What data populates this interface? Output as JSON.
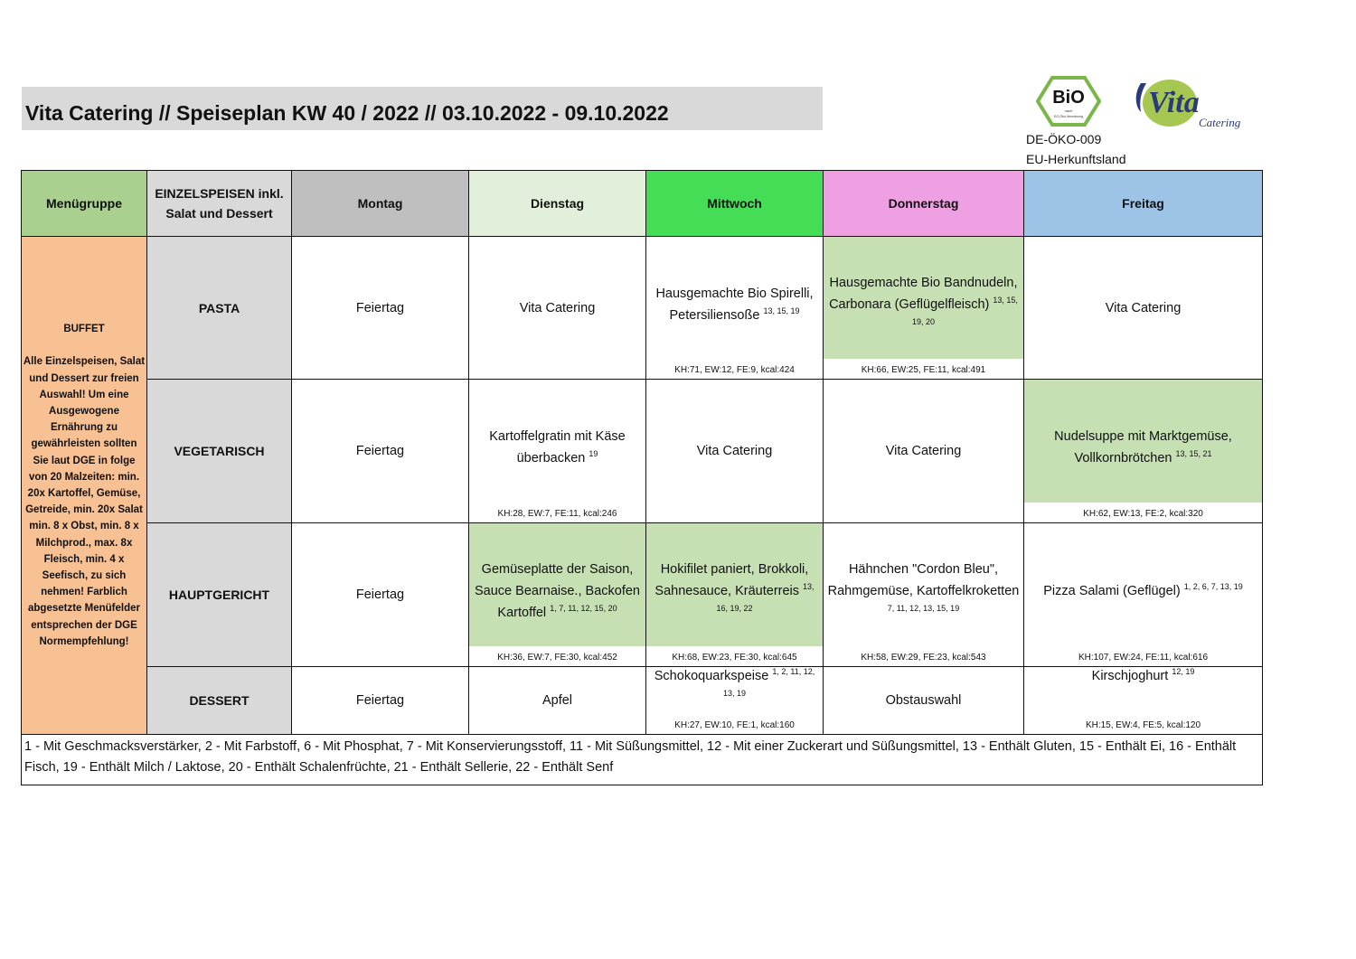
{
  "title": "Vita Catering // Speiseplan KW 40 / 2022 // 03.10.2022 - 09.10.2022",
  "logos": {
    "bio": "BIO nach EG-Öko-Verordnung",
    "vita": "Vita Catering"
  },
  "certification": {
    "code": "DE-ÖKO-009",
    "origin": "EU-Herkunftsland"
  },
  "colors": {
    "menugruppe": "#a9d08e",
    "einzel": "#d9d9d9",
    "montag": "#bfbfbf",
    "dienstag": "#e2efda",
    "mittwoch": "#44dd55",
    "donnerstag": "#eea0e2",
    "freitag": "#9dc3e6",
    "buffet": "#f8c193",
    "dge_green": "#c6e0b4"
  },
  "header": [
    "Menügruppe",
    "EINZELSPEISEN inkl. Salat und Dessert",
    "Montag",
    "Dienstag",
    "Mittwoch",
    "Donnerstag",
    "Freitag"
  ],
  "buffet": {
    "title": "BUFFET",
    "text": "Alle Einzelspeisen, Salat und Dessert zur freien Auswahl! Um eine Ausgewogene Ernährung zu gewährleisten sollten Sie laut DGE in folge von 20 Malzeiten: min. 20x Kartoffel, Gemüse, Getreide, min. 20x Salat min. 8 x Obst, min. 8 x Milchprod., max. 8x Fleisch, min. 4 x Seefisch, zu sich nehmen! Farblich abgesetzte Menüfelder entsprechen der DGE Normempfehlung!"
  },
  "rows": [
    {
      "category": "PASTA",
      "days": [
        {
          "text": "Feiertag"
        },
        {
          "text": "Vita Catering"
        },
        {
          "text": "Hausgemachte Bio Spirelli, Petersiliensoße",
          "allergens": "13, 15, 19",
          "nutrition": "KH:71, EW:12, FE:9, kcal:424"
        },
        {
          "text": "Hausgemachte Bio Bandnudeln, Carbonara (Geflügelfleisch)",
          "allergens": "13, 15, 19, 20",
          "nutrition": "KH:66, EW:25, FE:11, kcal:491",
          "dge": true
        },
        {
          "text": "Vita Catering"
        }
      ]
    },
    {
      "category": "VEGETARISCH",
      "days": [
        {
          "text": "Feiertag"
        },
        {
          "text": "Kartoffelgratin mit Käse überbacken",
          "allergens": "19",
          "nutrition": "KH:28, EW:7, FE:11, kcal:246"
        },
        {
          "text": "Vita Catering"
        },
        {
          "text": "Vita Catering"
        },
        {
          "text": "Nudelsuppe mit Marktgemüse, Vollkornbrötchen",
          "allergens": "13, 15, 21",
          "nutrition": "KH:62, EW:13, FE:2, kcal:320",
          "dge": true
        }
      ]
    },
    {
      "category": "HAUPTGERICHT",
      "days": [
        {
          "text": "Feiertag"
        },
        {
          "text": "Gemüseplatte der Saison, Sauce Bearnaise., Backofen Kartoffel",
          "allergens": "1, 7, 11, 12, 15, 20",
          "nutrition": "KH:36, EW:7, FE:30, kcal:452",
          "dge": true
        },
        {
          "text": "Hokifilet paniert, Brokkoli, Sahnesauce, Kräuterreis",
          "allergens": "13, 16, 19, 22",
          "nutrition": "KH:68, EW:23, FE:30, kcal:645",
          "dge": true
        },
        {
          "text": "Hähnchen \"Cordon Bleu\", Rahmgemüse, Kartoffelkroketten",
          "allergens": "7, 11, 12, 13, 15, 19",
          "nutrition": "KH:58, EW:29, FE:23, kcal:543"
        },
        {
          "text": "Pizza Salami (Geflügel)",
          "allergens": "1, 2, 6, 7, 13, 19",
          "nutrition": "KH:107, EW:24, FE:11, kcal:616"
        }
      ]
    },
    {
      "category": "DESSERT",
      "days": [
        {
          "text": "Feiertag"
        },
        {
          "text": "Apfel"
        },
        {
          "text": "Schokoquarkspeise",
          "allergens": "1, 2, 11, 12, 13, 19",
          "nutrition": "KH:27, EW:10, FE:1, kcal:160"
        },
        {
          "text": "Obstauswahl"
        },
        {
          "text": "Kirschjoghurt",
          "allergens": "12, 19",
          "nutrition": "KH:15, EW:4, FE:5, kcal:120"
        }
      ]
    }
  ],
  "footnote": "1 - Mit Geschmacksverstärker, 2 - Mit Farbstoff, 6 - Mit Phosphat, 7 - Mit Konservierungsstoff, 11 - Mit Süßungsmittel, 12 - Mit einer Zuckerart und Süßungsmittel, 13 - Enthält Gluten, 15 - Enthält Ei, 16 - Enthält Fisch, 19 - Enthält Milch / Laktose, 20 - Enthält Schalenfrüchte, 21 - Enthält Sellerie, 22 - Enthält Senf"
}
